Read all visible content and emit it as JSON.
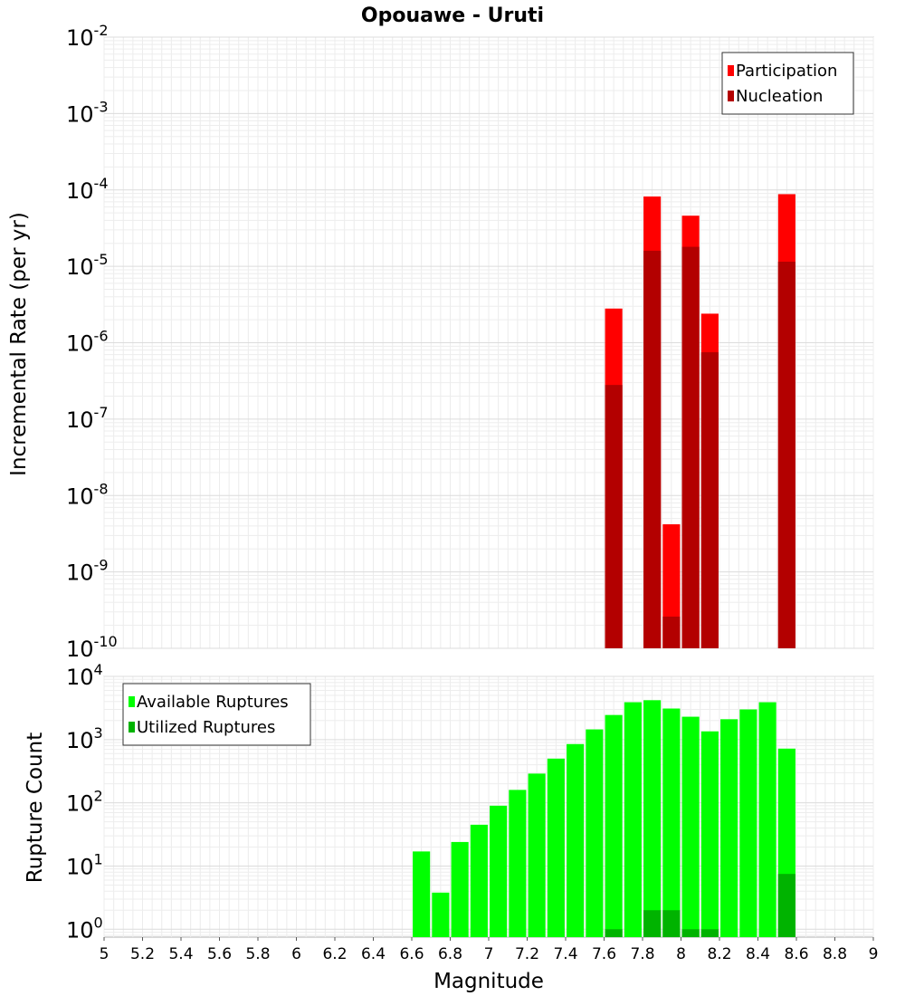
{
  "chart_data": [
    {
      "type": "bar",
      "title": "Opouawe - Uruti",
      "xlabel": "",
      "ylabel": "Incremental Rate (per yr)",
      "yscale": "log",
      "xlim": [
        5,
        9
      ],
      "ylim": [
        1e-10,
        0.01
      ],
      "ytick_exponents": [
        "-2",
        "-3",
        "-4",
        "-5",
        "-6",
        "-7",
        "-8",
        "-9",
        "-10"
      ],
      "ytick_base": "10",
      "grid": true,
      "legend_position": "top-right",
      "bar_width": 0.09,
      "x": [
        7.65,
        7.85,
        7.95,
        8.05,
        8.15,
        8.55
      ],
      "series": [
        {
          "name": "Participation",
          "color": "#ff0000",
          "values": [
            2.8e-06,
            8.2e-05,
            4.2e-09,
            4.6e-05,
            2.4e-06,
            8.8e-05
          ]
        },
        {
          "name": "Nucleation",
          "color": "#b30000",
          "values": [
            2.8e-07,
            1.6e-05,
            2.6e-10,
            1.8e-05,
            7.5e-07,
            1.15e-05
          ]
        }
      ]
    },
    {
      "type": "bar",
      "title": "",
      "xlabel": "Magnitude",
      "ylabel": "Rupture Count",
      "yscale": "log",
      "xlim": [
        5,
        9
      ],
      "ylim": [
        0.75,
        10000
      ],
      "ytick_exponents": [
        "4",
        "3",
        "2",
        "1",
        "0"
      ],
      "ytick_base": "10",
      "xticks": [
        "5",
        "5.2",
        "5.4",
        "5.6",
        "5.8",
        "6",
        "6.2",
        "6.4",
        "6.6",
        "6.8",
        "7",
        "7.2",
        "7.4",
        "7.6",
        "7.8",
        "8",
        "8.2",
        "8.4",
        "8.6",
        "8.8",
        "9"
      ],
      "grid": true,
      "legend_position": "top-left",
      "bar_width": 0.09,
      "x": [
        6.65,
        6.75,
        6.85,
        6.95,
        7.05,
        7.15,
        7.25,
        7.35,
        7.45,
        7.55,
        7.65,
        7.75,
        7.85,
        7.95,
        8.05,
        8.15,
        8.25,
        8.35,
        8.45,
        8.55
      ],
      "series": [
        {
          "name": "Available Ruptures",
          "color": "#00ff00",
          "values": [
            17,
            3.8,
            24,
            45,
            90,
            160,
            290,
            500,
            850,
            1450,
            2450,
            3900,
            4200,
            3100,
            2300,
            1350,
            2100,
            3000,
            3900,
            720
          ]
        },
        {
          "name": "Utilized Ruptures",
          "color": "#00b300",
          "values": [
            0,
            0,
            0,
            0,
            0,
            0,
            0,
            0,
            0,
            0,
            1,
            0,
            2,
            2,
            1,
            1,
            0,
            0,
            0,
            7.5
          ]
        }
      ]
    }
  ]
}
